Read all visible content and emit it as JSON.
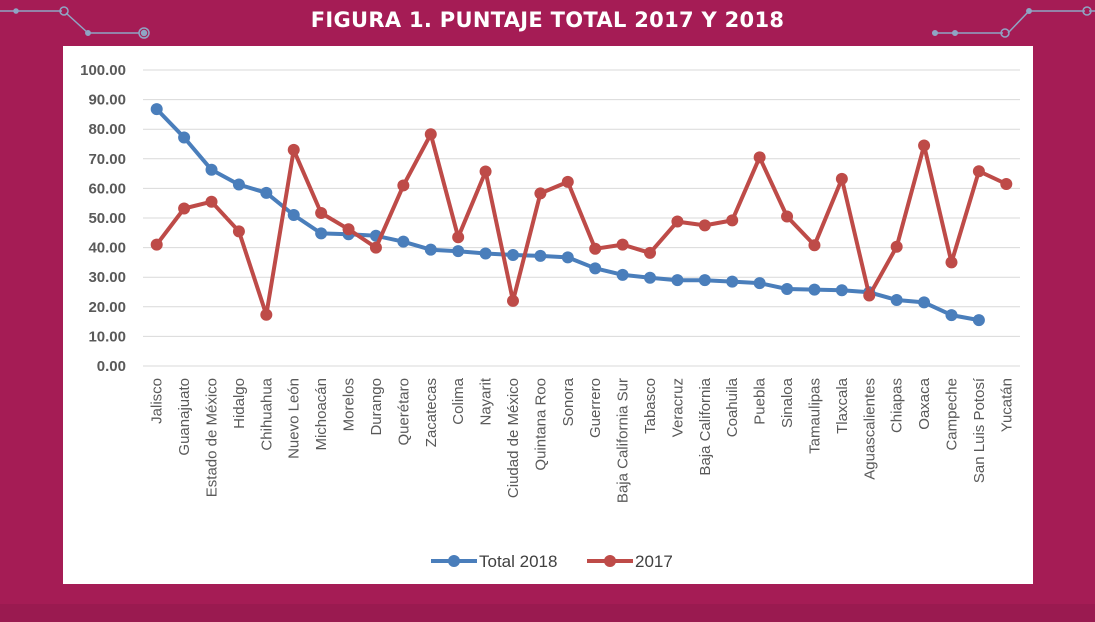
{
  "figure": {
    "title": "FIGURA 1. PUNTAJE TOTAL 2017 Y 2018",
    "background_color": "#a51c55",
    "panel_color": "#ffffff",
    "decoration_color": "#8fa5c4"
  },
  "chart_data": {
    "type": "line",
    "title": "FIGURA 1. PUNTAJE TOTAL 2017 Y 2018",
    "xlabel": "",
    "ylabel": "",
    "ylim": [
      0,
      100
    ],
    "yticks": [
      "0.00",
      "10.00",
      "20.00",
      "30.00",
      "40.00",
      "50.00",
      "60.00",
      "70.00",
      "80.00",
      "90.00",
      "100.00"
    ],
    "grid": true,
    "legend_position": "bottom",
    "categories": [
      "Jalisco",
      "Guanajuato",
      "Estado de México",
      "Hidalgo",
      "Chihuahua",
      "Nuevo León",
      "Michoacán",
      "Morelos",
      "Durango",
      "Querétaro",
      "Zacatecas",
      "Colima",
      "Nayarit",
      "Ciudad de México",
      "Quintana Roo",
      "Sonora",
      "Guerrero",
      "Baja California Sur",
      "Tabasco",
      "Veracruz",
      "Baja California",
      "Coahuila",
      "Puebla",
      "Sinaloa",
      "Tamaulipas",
      "Tlaxcala",
      "Aguascalientes",
      "Chiapas",
      "Oaxaca",
      "Campeche",
      "San Luis Potosí",
      "Yucatán"
    ],
    "series": [
      {
        "name": "Total 2018",
        "color": "#4a7ebb",
        "values": [
          86.8,
          77.2,
          66.3,
          61.3,
          58.5,
          51.0,
          44.8,
          44.5,
          44.0,
          42.0,
          39.3,
          38.8,
          38.0,
          37.5,
          37.2,
          36.7,
          33.0,
          30.8,
          29.8,
          29.0,
          29.0,
          28.5,
          28.0,
          26.0,
          25.8,
          25.6,
          24.9,
          22.3,
          21.5,
          17.2,
          15.5,
          null
        ]
      },
      {
        "name": "2017",
        "color": "#be4b48",
        "values": [
          41.0,
          53.2,
          55.5,
          45.5,
          17.3,
          73.0,
          51.7,
          46.2,
          40.0,
          61.0,
          78.3,
          43.5,
          65.7,
          22.0,
          58.3,
          62.2,
          39.6,
          41.0,
          38.2,
          48.8,
          47.5,
          49.2,
          70.5,
          50.5,
          40.8,
          63.2,
          23.8,
          40.3,
          74.5,
          35.0,
          65.8,
          61.5
        ]
      }
    ]
  }
}
